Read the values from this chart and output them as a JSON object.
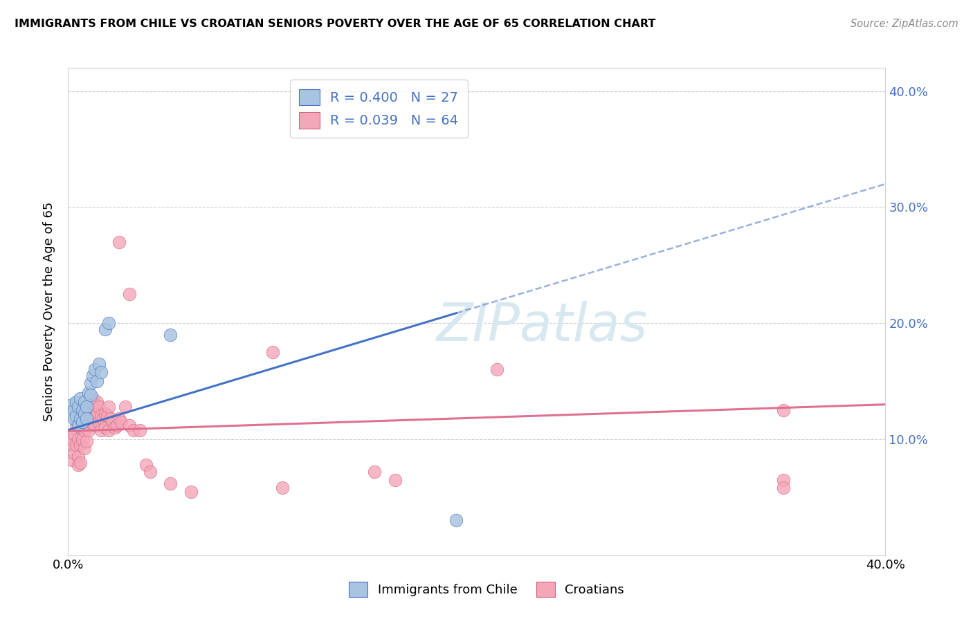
{
  "title": "IMMIGRANTS FROM CHILE VS CROATIAN SENIORS POVERTY OVER THE AGE OF 65 CORRELATION CHART",
  "source": "Source: ZipAtlas.com",
  "ylabel": "Seniors Poverty Over the Age of 65",
  "xlim": [
    0.0,
    0.4
  ],
  "ylim": [
    0.0,
    0.42
  ],
  "yticks": [
    0.1,
    0.2,
    0.3,
    0.4
  ],
  "ytick_labels": [
    "10.0%",
    "20.0%",
    "30.0%",
    "40.0%"
  ],
  "color_chile": "#a8c4e0",
  "color_croatian": "#f4a7b9",
  "trendline_chile_color": "#4472c4",
  "trendline_croatian_color": "#e07090",
  "watermark": "ZIPatlas",
  "chile_R": 0.4,
  "chile_N": 27,
  "croatian_R": 0.039,
  "croatian_N": 64,
  "chile_x": [
    0.002,
    0.003,
    0.003,
    0.004,
    0.004,
    0.005,
    0.005,
    0.006,
    0.006,
    0.007,
    0.007,
    0.008,
    0.008,
    0.009,
    0.009,
    0.01,
    0.011,
    0.011,
    0.012,
    0.013,
    0.014,
    0.015,
    0.016,
    0.018,
    0.02,
    0.05,
    0.19
  ],
  "chile_y": [
    0.13,
    0.125,
    0.118,
    0.132,
    0.12,
    0.128,
    0.112,
    0.135,
    0.118,
    0.125,
    0.115,
    0.132,
    0.122,
    0.128,
    0.118,
    0.14,
    0.148,
    0.138,
    0.155,
    0.16,
    0.15,
    0.165,
    0.158,
    0.195,
    0.2,
    0.19,
    0.03
  ],
  "croatian_x": [
    0.001,
    0.002,
    0.002,
    0.003,
    0.003,
    0.004,
    0.004,
    0.005,
    0.005,
    0.005,
    0.006,
    0.006,
    0.006,
    0.007,
    0.007,
    0.008,
    0.008,
    0.008,
    0.009,
    0.009,
    0.01,
    0.01,
    0.011,
    0.011,
    0.012,
    0.012,
    0.013,
    0.013,
    0.014,
    0.014,
    0.015,
    0.015,
    0.016,
    0.016,
    0.017,
    0.018,
    0.018,
    0.019,
    0.02,
    0.02,
    0.021,
    0.022,
    0.023,
    0.024,
    0.025,
    0.026,
    0.028,
    0.03,
    0.032,
    0.035,
    0.038,
    0.04,
    0.05,
    0.06,
    0.1,
    0.105,
    0.15,
    0.16,
    0.21,
    0.35,
    0.35,
    0.03,
    0.025,
    0.35
  ],
  "croatian_y": [
    0.095,
    0.1,
    0.082,
    0.105,
    0.088,
    0.112,
    0.095,
    0.1,
    0.085,
    0.078,
    0.11,
    0.095,
    0.08,
    0.118,
    0.1,
    0.122,
    0.108,
    0.092,
    0.115,
    0.098,
    0.128,
    0.108,
    0.132,
    0.115,
    0.135,
    0.118,
    0.13,
    0.112,
    0.122,
    0.132,
    0.128,
    0.115,
    0.12,
    0.108,
    0.118,
    0.122,
    0.11,
    0.12,
    0.128,
    0.108,
    0.118,
    0.115,
    0.11,
    0.112,
    0.118,
    0.115,
    0.128,
    0.112,
    0.108,
    0.108,
    0.078,
    0.072,
    0.062,
    0.055,
    0.175,
    0.058,
    0.072,
    0.065,
    0.16,
    0.125,
    0.065,
    0.225,
    0.27,
    0.058
  ],
  "chile_trend_x0": 0.0,
  "chile_trend_y0": 0.108,
  "chile_trend_x1": 0.4,
  "chile_trend_y1": 0.32,
  "croatian_trend_x0": 0.0,
  "croatian_trend_y0": 0.107,
  "croatian_trend_x1": 0.4,
  "croatian_trend_y1": 0.13
}
